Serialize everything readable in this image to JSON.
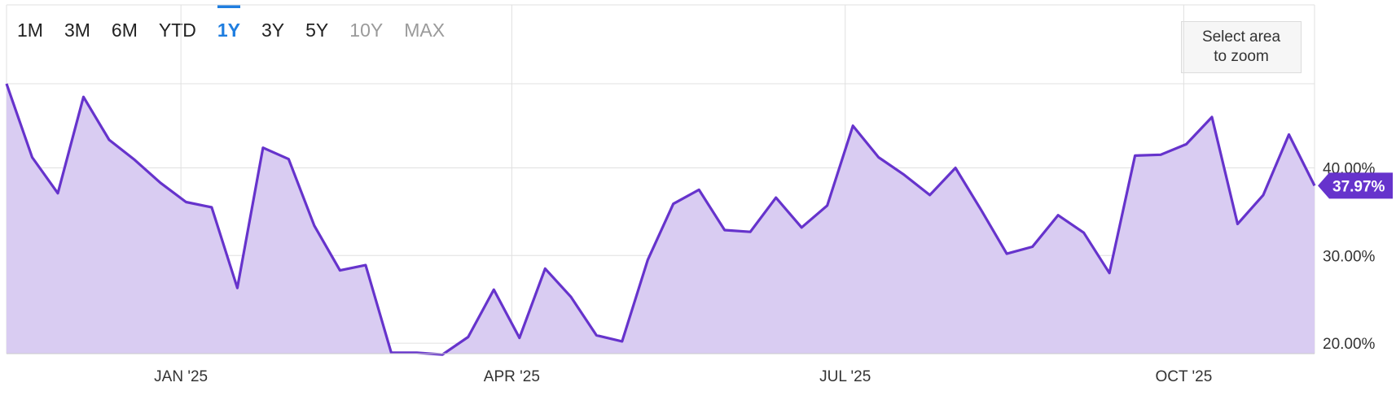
{
  "range_selector": {
    "buttons": [
      {
        "label": "1M",
        "state": "normal"
      },
      {
        "label": "3M",
        "state": "normal"
      },
      {
        "label": "6M",
        "state": "normal"
      },
      {
        "label": "YTD",
        "state": "normal"
      },
      {
        "label": "1Y",
        "state": "active"
      },
      {
        "label": "3Y",
        "state": "normal"
      },
      {
        "label": "5Y",
        "state": "normal"
      },
      {
        "label": "10Y",
        "state": "disabled"
      },
      {
        "label": "MAX",
        "state": "disabled"
      }
    ]
  },
  "zoom_hint": {
    "line1": "Select area",
    "line2": "to zoom"
  },
  "colors": {
    "line": "#6633cc",
    "fill": "#d9ccf2",
    "grid": "#e0e0e0",
    "accent": "#1f7ee0",
    "badge": "#6633cc"
  },
  "chart_data": {
    "type": "area",
    "x_ticks": [
      "JAN '25",
      "APR '25",
      "JUL '25",
      "OCT '25"
    ],
    "y_ticks": [
      "20.00%",
      "30.00%",
      "40.00%"
    ],
    "ylim": [
      18.8,
      49.6
    ],
    "grid": true,
    "last_value_label": "37.97%",
    "x_tick_index": [
      6.8,
      19.7,
      32.7,
      45.9
    ],
    "series": [
      {
        "values": [
          49.6,
          41.2,
          37.1,
          48.1,
          43.2,
          40.9,
          38.3,
          36.1,
          35.5,
          26.3,
          42.3,
          41.0,
          33.4,
          28.3,
          28.9,
          18.9,
          18.9,
          18.7,
          20.7,
          26.1,
          20.6,
          28.5,
          25.3,
          20.9,
          20.2,
          29.5,
          35.9,
          37.5,
          32.9,
          32.7,
          36.6,
          33.2,
          35.7,
          44.8,
          41.2,
          39.2,
          36.9,
          40.0,
          35.2,
          30.2,
          31.0,
          34.6,
          32.6,
          28.0,
          41.4,
          41.5,
          42.7,
          45.8,
          33.6,
          36.9,
          43.8,
          37.97
        ]
      }
    ]
  }
}
